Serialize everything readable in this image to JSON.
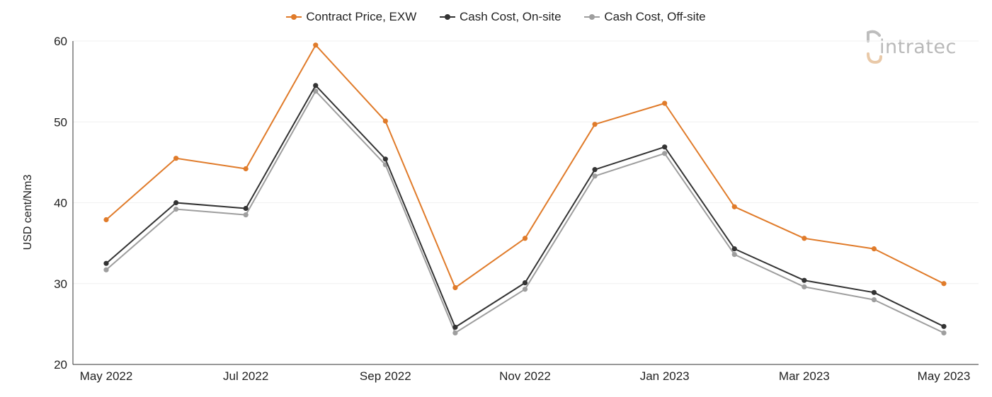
{
  "chart_data": {
    "type": "line",
    "categories": [
      "May 2022",
      "Jun 2022",
      "Jul 2022",
      "Aug 2022",
      "Sep 2022",
      "Oct 2022",
      "Nov 2022",
      "Dec 2022",
      "Jan 2023",
      "Feb 2023",
      "Mar 2023",
      "Apr 2023",
      "May 2023"
    ],
    "x_tick_labels": [
      "May 2022",
      "Jul 2022",
      "Sep 2022",
      "Nov 2022",
      "Jan 2023",
      "Mar 2023",
      "May 2023"
    ],
    "ylabel": "USD cent/Nm3",
    "xlabel": "",
    "title": "",
    "ylim": [
      20,
      60
    ],
    "y_ticks": [
      20,
      30,
      40,
      50,
      60
    ],
    "grid": true,
    "legend_position": "top-center",
    "series": [
      {
        "name": "Contract Price, EXW",
        "color": "#e07b2a",
        "values": [
          37.9,
          45.5,
          44.2,
          59.5,
          50.1,
          29.5,
          35.6,
          49.7,
          52.3,
          39.5,
          35.6,
          34.3,
          30.0
        ]
      },
      {
        "name": "Cash Cost, On-site",
        "color": "#333333",
        "values": [
          32.5,
          40.0,
          39.3,
          54.5,
          45.4,
          24.6,
          30.1,
          44.1,
          46.9,
          34.3,
          30.4,
          28.9,
          24.7
        ]
      },
      {
        "name": "Cash Cost, Off-site",
        "color": "#9e9e9e",
        "values": [
          31.7,
          39.2,
          38.5,
          53.8,
          44.7,
          23.9,
          29.3,
          43.3,
          46.1,
          33.6,
          29.6,
          28.0,
          23.9
        ]
      }
    ]
  },
  "logo": {
    "text": "intratec"
  }
}
